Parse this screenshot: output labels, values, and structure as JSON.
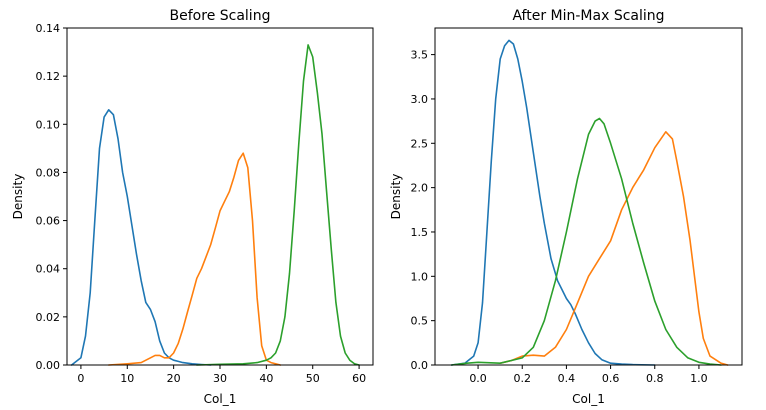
{
  "chart_data": [
    {
      "type": "line",
      "subtype": "kde",
      "title": "Before Scaling",
      "xlabel": "Col_1",
      "ylabel": "Density",
      "xlim": [
        -3,
        63
      ],
      "ylim": [
        0,
        0.14
      ],
      "xticks": [
        0,
        10,
        20,
        30,
        40,
        50,
        60
      ],
      "xtick_labels": [
        "0",
        "10",
        "20",
        "30",
        "40",
        "50",
        "60"
      ],
      "yticks": [
        0,
        0.02,
        0.04,
        0.06,
        0.08,
        0.1,
        0.12,
        0.14
      ],
      "ytick_labels": [
        "0.00",
        "0.02",
        "0.04",
        "0.06",
        "0.08",
        "0.10",
        "0.12",
        "0.14"
      ],
      "grid": false,
      "series": [
        {
          "color": "#1f77b4",
          "x": [
            -2,
            0,
            1,
            2,
            3,
            4,
            5,
            6,
            7,
            8,
            9,
            10,
            11,
            12,
            13,
            14,
            15,
            16,
            17,
            18,
            19,
            20,
            21,
            22,
            24,
            26,
            28
          ],
          "y": [
            0.0,
            0.003,
            0.012,
            0.03,
            0.06,
            0.09,
            0.103,
            0.106,
            0.104,
            0.094,
            0.08,
            0.07,
            0.058,
            0.046,
            0.035,
            0.026,
            0.023,
            0.018,
            0.01,
            0.005,
            0.003,
            0.002,
            0.0015,
            0.001,
            0.0005,
            0.0002,
            0.0
          ]
        },
        {
          "color": "#ff7f0e",
          "x": [
            6,
            10,
            13,
            15,
            16,
            17,
            18,
            19,
            20,
            21,
            22,
            23,
            24,
            25,
            26,
            27,
            28,
            29,
            30,
            31,
            32,
            33,
            34,
            35,
            36,
            37,
            38,
            39,
            40,
            41,
            42,
            43
          ],
          "y": [
            0.0,
            0.0005,
            0.001,
            0.003,
            0.004,
            0.004,
            0.003,
            0.003,
            0.005,
            0.009,
            0.015,
            0.022,
            0.029,
            0.036,
            0.04,
            0.045,
            0.05,
            0.057,
            0.064,
            0.068,
            0.072,
            0.078,
            0.085,
            0.088,
            0.082,
            0.06,
            0.028,
            0.008,
            0.002,
            0.001,
            0.0005,
            0.0
          ]
        },
        {
          "color": "#2ca02c",
          "x": [
            25,
            30,
            35,
            38,
            40,
            41,
            42,
            43,
            44,
            45,
            46,
            47,
            48,
            49,
            50,
            51,
            52,
            53,
            54,
            55,
            56,
            57,
            58,
            59,
            60
          ],
          "y": [
            0.0,
            0.0003,
            0.0005,
            0.001,
            0.002,
            0.003,
            0.005,
            0.01,
            0.02,
            0.038,
            0.064,
            0.092,
            0.118,
            0.133,
            0.128,
            0.113,
            0.096,
            0.072,
            0.048,
            0.026,
            0.012,
            0.005,
            0.002,
            0.0005,
            0.0
          ]
        }
      ]
    },
    {
      "type": "line",
      "subtype": "kde",
      "title": "After Min-Max Scaling",
      "xlabel": "Col_1",
      "ylabel": "Density",
      "xlim": [
        -0.195,
        1.195
      ],
      "ylim": [
        0,
        3.8
      ],
      "xticks": [
        0,
        0.2,
        0.4,
        0.6,
        0.8,
        1.0
      ],
      "xtick_labels": [
        "0.0",
        "0.2",
        "0.4",
        "0.6",
        "0.8",
        "1.0"
      ],
      "yticks": [
        0,
        0.5,
        1.0,
        1.5,
        2.0,
        2.5,
        3.0,
        3.5
      ],
      "ytick_labels": [
        "0.0",
        "0.5",
        "1.0",
        "1.5",
        "2.0",
        "2.5",
        "3.0",
        "3.5"
      ],
      "grid": false,
      "series": [
        {
          "color": "#1f77b4",
          "x": [
            -0.12,
            -0.06,
            -0.02,
            0.0,
            0.02,
            0.04,
            0.06,
            0.08,
            0.1,
            0.12,
            0.14,
            0.16,
            0.18,
            0.2,
            0.22,
            0.25,
            0.28,
            0.3,
            0.33,
            0.36,
            0.38,
            0.4,
            0.42,
            0.44,
            0.47,
            0.5,
            0.53,
            0.56,
            0.6,
            0.65,
            0.7,
            0.8
          ],
          "y": [
            0.0,
            0.02,
            0.1,
            0.25,
            0.7,
            1.5,
            2.3,
            3.0,
            3.45,
            3.6,
            3.66,
            3.62,
            3.45,
            3.2,
            2.9,
            2.4,
            1.9,
            1.6,
            1.2,
            0.95,
            0.85,
            0.75,
            0.68,
            0.58,
            0.4,
            0.25,
            0.13,
            0.06,
            0.02,
            0.01,
            0.005,
            0.0
          ]
        },
        {
          "color": "#ff7f0e",
          "x": [
            0.1,
            0.15,
            0.2,
            0.25,
            0.3,
            0.35,
            0.4,
            0.45,
            0.5,
            0.55,
            0.6,
            0.65,
            0.7,
            0.75,
            0.8,
            0.85,
            0.88,
            0.9,
            0.93,
            0.96,
            0.98,
            1.0,
            1.02,
            1.05,
            1.1,
            1.13
          ],
          "y": [
            0.02,
            0.05,
            0.1,
            0.11,
            0.1,
            0.2,
            0.4,
            0.7,
            1.0,
            1.2,
            1.4,
            1.75,
            2.0,
            2.2,
            2.45,
            2.63,
            2.55,
            2.3,
            1.9,
            1.4,
            1.0,
            0.6,
            0.3,
            0.1,
            0.02,
            0.0
          ]
        },
        {
          "color": "#2ca02c",
          "x": [
            -0.12,
            -0.05,
            0.0,
            0.1,
            0.2,
            0.25,
            0.3,
            0.35,
            0.4,
            0.45,
            0.5,
            0.53,
            0.55,
            0.57,
            0.6,
            0.65,
            0.7,
            0.75,
            0.8,
            0.85,
            0.9,
            0.95,
            1.0,
            1.05,
            1.1
          ],
          "y": [
            0.0,
            0.02,
            0.03,
            0.02,
            0.08,
            0.2,
            0.5,
            0.95,
            1.5,
            2.1,
            2.6,
            2.75,
            2.78,
            2.72,
            2.5,
            2.1,
            1.6,
            1.15,
            0.72,
            0.4,
            0.2,
            0.08,
            0.03,
            0.01,
            0.0
          ]
        }
      ]
    }
  ]
}
